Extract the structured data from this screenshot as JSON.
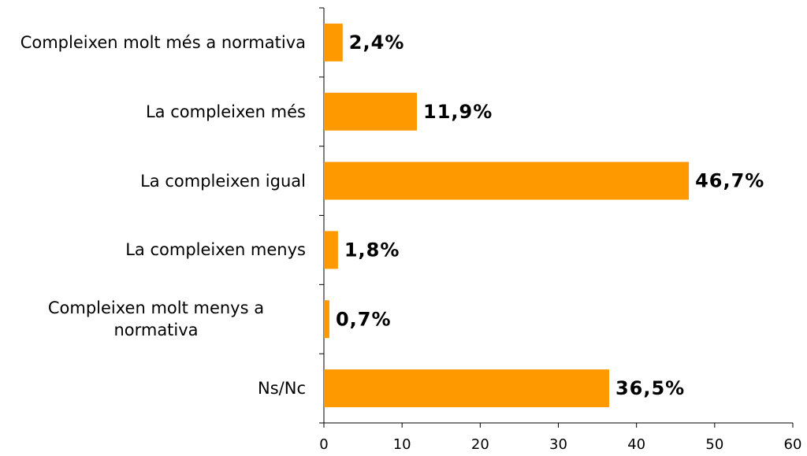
{
  "chart_data": {
    "type": "hbar",
    "categories": [
      "Compleixen molt més a normativa",
      "La compleixen més",
      "La compleixen igual",
      "La compleixen menys",
      "Compleixen molt menys a normativa",
      "Ns/Nc"
    ],
    "values": [
      2.4,
      11.9,
      46.7,
      1.8,
      0.7,
      36.5
    ],
    "value_labels": [
      "2,4%",
      "11,9%",
      "46,7%",
      "1,8%",
      "0,7%",
      "36,5%"
    ],
    "color": "#ff9900",
    "xlim": [
      0,
      60
    ],
    "xticks": [
      0,
      10,
      20,
      30,
      40,
      50,
      60
    ],
    "grid": false
  }
}
